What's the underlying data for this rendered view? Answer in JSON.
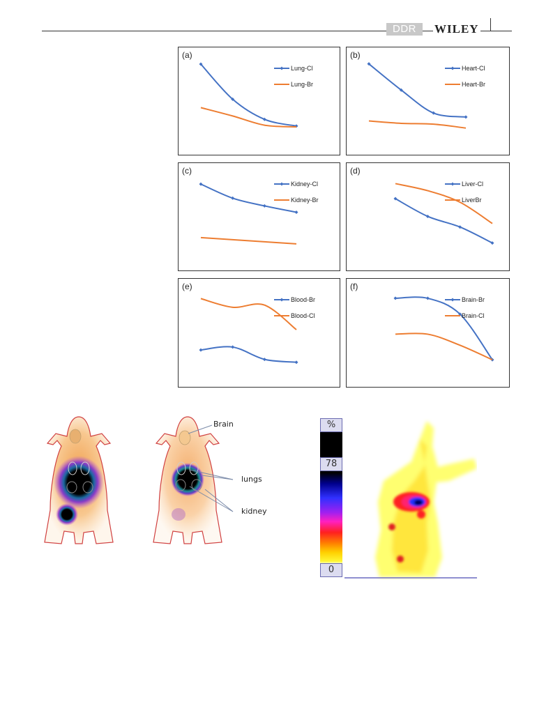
{
  "header": {
    "badge": "DDR",
    "publisher": "WILEY"
  },
  "chart_data": [
    {
      "panel": "(a)",
      "type": "line",
      "x": [
        1,
        2,
        3,
        4
      ],
      "series": [
        {
          "name": "Lung-Cl",
          "values": [
            100,
            58,
            34,
            26
          ],
          "color": "#4472c4",
          "markers": true
        },
        {
          "name": "Lung-Br",
          "values": [
            48,
            38,
            27,
            25
          ],
          "color": "#ed7d31",
          "markers": false
        }
      ],
      "ylim": [
        15,
        105
      ]
    },
    {
      "panel": "(b)",
      "type": "line",
      "x": [
        1,
        2,
        3,
        4
      ],
      "series": [
        {
          "name": "Heart-Cl",
          "values": [
            100,
            67,
            38,
            33
          ],
          "color": "#4472c4",
          "markers": true
        },
        {
          "name": "Heart-Br",
          "values": [
            28,
            25,
            24,
            19
          ],
          "color": "#ed7d31",
          "markers": false
        }
      ],
      "ylim": [
        10,
        105
      ]
    },
    {
      "panel": "(c)",
      "type": "line",
      "x": [
        1,
        2,
        3,
        4
      ],
      "series": [
        {
          "name": "Kidney-Cl",
          "values": [
            100,
            80,
            69,
            60
          ],
          "color": "#4472c4",
          "markers": true
        },
        {
          "name": "Kidney-Br",
          "values": [
            24,
            21,
            18,
            15
          ],
          "color": "#ed7d31",
          "markers": false
        }
      ],
      "ylim": [
        5,
        112
      ]
    },
    {
      "panel": "(d)",
      "type": "line",
      "x": [
        1,
        2,
        3,
        4
      ],
      "series": [
        {
          "name": "Liver-Cl",
          "values": [
            84,
            64,
            52,
            34
          ],
          "color": "#4472c4",
          "markers": true
        },
        {
          "name": "LiverBr",
          "values": [
            101,
            93,
            80,
            56
          ],
          "color": "#ed7d31",
          "markers": false
        }
      ],
      "ylim": [
        25,
        110
      ]
    },
    {
      "panel": "(e)",
      "type": "line",
      "x": [
        1,
        2,
        3,
        4
      ],
      "series": [
        {
          "name": "Blood-Br",
          "values": [
            29,
            33,
            16,
            12
          ],
          "color": "#4472c4",
          "markers": true
        },
        {
          "name": "Blood-Cl",
          "values": [
            100,
            88,
            91,
            57
          ],
          "color": "#ed7d31",
          "markers": false
        }
      ],
      "ylim": [
        5,
        110
      ]
    },
    {
      "panel": "(f)",
      "type": "line",
      "x": [
        1,
        2,
        3,
        4
      ],
      "series": [
        {
          "name": "Brain-Br",
          "values": [
            100,
            100,
            77,
            11
          ],
          "color": "#4472c4",
          "markers": true
        },
        {
          "name": "Brain-Cl",
          "values": [
            48,
            48,
            32,
            11
          ],
          "color": "#ed7d31",
          "markers": false
        }
      ],
      "ylim": [
        0,
        110
      ]
    }
  ],
  "images": {
    "annotations": {
      "brain": "Brain",
      "lungs": "lungs",
      "kidney": "kidney"
    },
    "scale": {
      "unit": "%",
      "max": "78",
      "min": "0"
    }
  }
}
